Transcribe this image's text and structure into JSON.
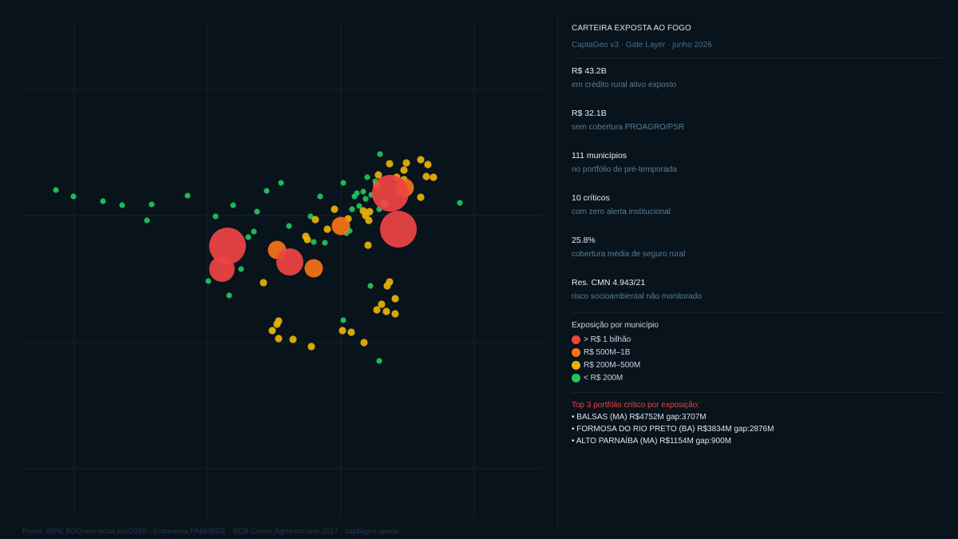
{
  "panel": {
    "title": "CARTEIRA EXPOSTA AO FOGO",
    "subtitle": "CaptaGeo v3 · Gate Layer · junho 2026",
    "stats": [
      {
        "value": "R$ 43.2B",
        "label": "em crédito rural ativo exposto"
      },
      {
        "value": "R$ 32.1B",
        "label": "sem cobertura PROAGRO/PSR"
      },
      {
        "value": "111 municípios",
        "label": "no portfólio de pré-temporada"
      },
      {
        "value": "10 críticos",
        "label": "com zero alerta institucional"
      },
      {
        "value": "25.8%",
        "label": "cobertura média de seguro rural"
      },
      {
        "value": "Res. CMN 4.943/21",
        "label": "risco socioambiental não monitorado"
      }
    ],
    "legend": {
      "title": "Exposição por município",
      "items": [
        {
          "label": "> R$ 1 bilhão",
          "color": "#ef4444"
        },
        {
          "label": "R$ 500M–1B",
          "color": "#f97316"
        },
        {
          "label": "R$ 200M–500M",
          "color": "#eab308"
        },
        {
          "label": "< R$ 200M",
          "color": "#22c55e"
        }
      ]
    },
    "top": {
      "title": "Top 3 portfólio crítico por exposição:",
      "items": [
        "• BALSAS (MA) R$4752M gap:3707M",
        "• FORMOSA DO RIO PRETO (BA) R$3834M gap:2876M",
        "• ALTO PARNAÍBA (MA) R$1154M gap:900M"
      ]
    }
  },
  "source": "Fonte: INPE BDQueimadas jun/2026 · Estimativa PAM/IBGE · BCB Censo Agropecuário 2017 · captageo.space",
  "chart_data": {
    "type": "scatter",
    "title": "",
    "xlabel": "",
    "ylabel": "",
    "grid": true,
    "xlim": [
      0,
      698
    ],
    "ylim": [
      0,
      675
    ],
    "series": [
      {
        "color": "#22c55e",
        "size": "< R$ 200M",
        "r": 3.6,
        "points": [
          [
            70,
            238
          ],
          [
            92,
            246
          ],
          [
            129,
            252
          ],
          [
            153,
            257
          ],
          [
            190,
            256
          ],
          [
            184,
            276
          ],
          [
            235,
            245
          ],
          [
            270,
            271
          ],
          [
            292,
            257
          ],
          [
            322,
            265
          ],
          [
            334,
            239
          ],
          [
            352,
            229
          ],
          [
            318,
            290
          ],
          [
            311,
            297
          ],
          [
            302,
            337
          ],
          [
            287,
            370
          ],
          [
            261,
            352
          ],
          [
            362,
            283
          ],
          [
            389,
            271
          ],
          [
            393,
            303
          ],
          [
            407,
            304
          ],
          [
            401,
            246
          ],
          [
            430,
            229
          ],
          [
            444,
            246
          ],
          [
            441,
            262
          ],
          [
            450,
            258
          ],
          [
            458,
            249
          ],
          [
            455,
            240
          ],
          [
            460,
            222
          ],
          [
            476,
            193
          ],
          [
            470,
            227
          ],
          [
            475,
            262
          ],
          [
            434,
            292
          ],
          [
            438,
            289
          ],
          [
            576,
            254
          ],
          [
            464,
            358
          ],
          [
            341,
            414
          ],
          [
            430,
            401
          ],
          [
            475,
            452
          ],
          [
            465,
            244
          ],
          [
            447,
            242
          ]
        ]
      },
      {
        "color": "#eab308",
        "size": "R$ 200M–500M",
        "r": 4.6,
        "points": [
          [
            488,
            205
          ],
          [
            474,
            219
          ],
          [
            497,
            222
          ],
          [
            472,
            232
          ],
          [
            509,
            204
          ],
          [
            527,
            200
          ],
          [
            536,
            206
          ],
          [
            506,
            213
          ],
          [
            534,
            221
          ],
          [
            543,
            222
          ],
          [
            506,
            225
          ],
          [
            527,
            247
          ],
          [
            482,
            255
          ],
          [
            419,
            262
          ],
          [
            436,
            274
          ],
          [
            455,
            264
          ],
          [
            463,
            265
          ],
          [
            462,
            276
          ],
          [
            458,
            270
          ],
          [
            410,
            287
          ],
          [
            383,
            296
          ],
          [
            385,
            300
          ],
          [
            461,
            307
          ],
          [
            330,
            354
          ],
          [
            488,
            353
          ],
          [
            485,
            358
          ],
          [
            478,
            381
          ],
          [
            495,
            374
          ],
          [
            472,
            388
          ],
          [
            484,
            390
          ],
          [
            495,
            393
          ],
          [
            349,
            402
          ],
          [
            347,
            406
          ],
          [
            341,
            414
          ],
          [
            349,
            424
          ],
          [
            367,
            425
          ],
          [
            390,
            434
          ],
          [
            429,
            414
          ],
          [
            440,
            416
          ],
          [
            456,
            429
          ],
          [
            395,
            275
          ]
        ]
      },
      {
        "color": "#f97316",
        "size": "R$ 500M–1B",
        "r": 11.5,
        "points": [
          [
            347,
            313
          ],
          [
            393,
            336
          ],
          [
            427,
            283
          ],
          [
            507,
            235
          ]
        ]
      },
      {
        "color": "#ef4444",
        "size": "> R$ 1 bilhão",
        "points": [
          [
            285,
            308,
            23
          ],
          [
            278,
            337,
            16
          ],
          [
            363,
            328,
            17
          ],
          [
            489,
            242,
            23
          ],
          [
            499,
            287,
            23
          ]
        ]
      }
    ]
  }
}
